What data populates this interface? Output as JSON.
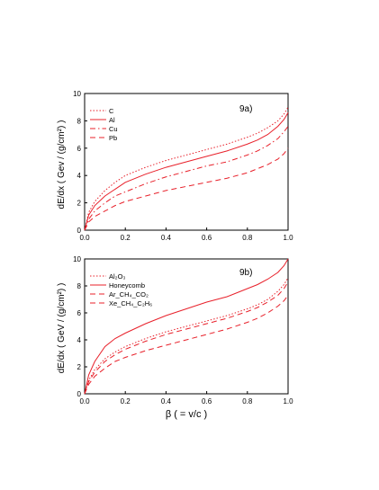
{
  "colors": {
    "curve": "#e8202a",
    "axis": "#000000",
    "background": "#ffffff"
  },
  "chart_data": [
    {
      "type": "line",
      "panel_label": "9a)",
      "xlabel": "",
      "ylabel": "dE/dx  ( Gev / (g/cm²) )",
      "xlim": [
        0.0,
        1.0
      ],
      "ylim": [
        0,
        10
      ],
      "xticks": [
        "0.0",
        "0.2",
        "0.4",
        "0.6",
        "0.8",
        "1.0"
      ],
      "yticks": [
        "0",
        "2",
        "4",
        "6",
        "8",
        "10"
      ],
      "legend_position": "top-left",
      "series": [
        {
          "name": "C",
          "dash": "dotted",
          "x": [
            0,
            0.02,
            0.05,
            0.1,
            0.15,
            0.2,
            0.3,
            0.4,
            0.5,
            0.6,
            0.7,
            0.8,
            0.85,
            0.9,
            0.95,
            0.98,
            1.0
          ],
          "y": [
            0,
            1.3,
            2.1,
            2.9,
            3.5,
            4.0,
            4.6,
            5.1,
            5.5,
            5.9,
            6.3,
            6.8,
            7.1,
            7.5,
            8.0,
            8.5,
            9.0
          ]
        },
        {
          "name": "Al",
          "dash": "solid",
          "x": [
            0,
            0.02,
            0.05,
            0.1,
            0.15,
            0.2,
            0.3,
            0.4,
            0.5,
            0.6,
            0.7,
            0.8,
            0.85,
            0.9,
            0.95,
            0.98,
            1.0
          ],
          "y": [
            0,
            1.1,
            1.8,
            2.5,
            3.0,
            3.5,
            4.1,
            4.6,
            5.0,
            5.4,
            5.8,
            6.3,
            6.6,
            7.0,
            7.6,
            8.1,
            8.6
          ]
        },
        {
          "name": "Cu",
          "dash": "dash-dot",
          "x": [
            0,
            0.02,
            0.05,
            0.1,
            0.15,
            0.2,
            0.3,
            0.4,
            0.5,
            0.6,
            0.7,
            0.8,
            0.85,
            0.9,
            0.95,
            0.98,
            1.0
          ],
          "y": [
            0,
            0.8,
            1.4,
            2.0,
            2.5,
            2.8,
            3.4,
            3.9,
            4.3,
            4.7,
            5.0,
            5.5,
            5.8,
            6.2,
            6.7,
            7.2,
            7.6
          ]
        },
        {
          "name": "Pb",
          "dash": "dashed",
          "x": [
            0,
            0.02,
            0.05,
            0.1,
            0.15,
            0.2,
            0.3,
            0.4,
            0.5,
            0.6,
            0.7,
            0.8,
            0.85,
            0.9,
            0.95,
            0.98,
            1.0
          ],
          "y": [
            0,
            0.6,
            1.0,
            1.4,
            1.8,
            2.1,
            2.5,
            2.9,
            3.2,
            3.5,
            3.8,
            4.2,
            4.5,
            4.8,
            5.2,
            5.6,
            6.0
          ]
        }
      ]
    },
    {
      "type": "line",
      "panel_label": "9b)",
      "xlabel": "β  ( = v/c )",
      "ylabel": "dE/dx  ( GeV / (g/cm²) )",
      "xlim": [
        0.0,
        1.0
      ],
      "ylim": [
        0,
        10
      ],
      "xticks": [
        "0.0",
        "0.2",
        "0.4",
        "0.6",
        "0.8",
        "1.0"
      ],
      "yticks": [
        "0",
        "2",
        "4",
        "6",
        "8",
        "10"
      ],
      "legend_position": "top-left",
      "series": [
        {
          "name": "Al₂O₃",
          "dash": "dotted",
          "x": [
            0,
            0.02,
            0.05,
            0.1,
            0.15,
            0.2,
            0.3,
            0.4,
            0.5,
            0.6,
            0.7,
            0.8,
            0.85,
            0.9,
            0.95,
            0.98,
            1.0
          ],
          "y": [
            0,
            1.0,
            1.8,
            2.6,
            3.1,
            3.5,
            4.1,
            4.6,
            5.0,
            5.4,
            5.8,
            6.3,
            6.6,
            7.0,
            7.6,
            8.1,
            8.6
          ]
        },
        {
          "name": "Honeycomb",
          "dash": "solid",
          "x": [
            0,
            0.02,
            0.05,
            0.1,
            0.15,
            0.2,
            0.3,
            0.4,
            0.5,
            0.6,
            0.7,
            0.8,
            0.85,
            0.9,
            0.95,
            0.98,
            1.0
          ],
          "y": [
            0,
            1.4,
            2.4,
            3.5,
            4.1,
            4.5,
            5.2,
            5.8,
            6.3,
            6.8,
            7.2,
            7.8,
            8.1,
            8.5,
            9.0,
            9.5,
            10.0
          ]
        },
        {
          "name": "Ar_CH₄_CO₂",
          "dash": "dashed",
          "x": [
            0,
            0.02,
            0.05,
            0.1,
            0.15,
            0.2,
            0.3,
            0.4,
            0.5,
            0.6,
            0.7,
            0.8,
            0.85,
            0.9,
            0.95,
            0.98,
            1.0
          ],
          "y": [
            0,
            0.9,
            1.6,
            2.4,
            2.9,
            3.3,
            3.9,
            4.4,
            4.8,
            5.2,
            5.6,
            6.1,
            6.4,
            6.8,
            7.3,
            7.8,
            8.3
          ]
        },
        {
          "name": "Xe_CH₄_C₂H₆",
          "dash": "dashed",
          "x": [
            0,
            0.02,
            0.05,
            0.1,
            0.15,
            0.2,
            0.3,
            0.4,
            0.5,
            0.6,
            0.7,
            0.8,
            0.85,
            0.9,
            0.95,
            0.98,
            1.0
          ],
          "y": [
            0,
            0.7,
            1.3,
            1.9,
            2.4,
            2.7,
            3.2,
            3.6,
            4.0,
            4.4,
            4.8,
            5.3,
            5.6,
            6.0,
            6.5,
            6.9,
            7.3
          ]
        }
      ]
    }
  ]
}
